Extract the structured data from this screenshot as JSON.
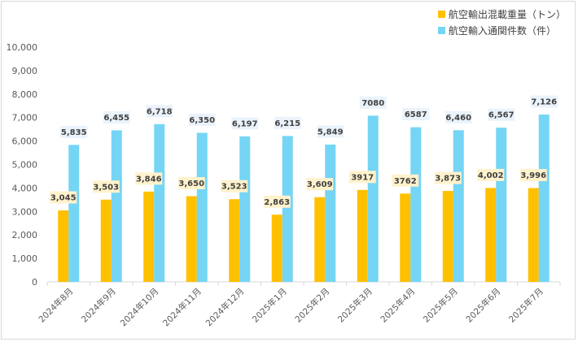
{
  "chart_data": {
    "type": "bar",
    "categories": [
      "2024年8月",
      "2024年9月",
      "2024年10月",
      "2024年11月",
      "2024年12月",
      "2025年1月",
      "2025年2月",
      "2025年3月",
      "2025年4月",
      "2025年5月",
      "2025年6月",
      "2025年7月"
    ],
    "series": [
      {
        "name": "航空輸出混載重量（トン）",
        "color": "#ffc000",
        "label_bg": "#fff2cc",
        "values": [
          3045,
          3503,
          3846,
          3650,
          3523,
          2863,
          3609,
          3917,
          3762,
          3873,
          4002,
          3996
        ],
        "labels": [
          "3,045",
          "3,503",
          "3,846",
          "3,650",
          "3,523",
          "2,863",
          "3,609",
          "3917",
          "3762",
          "3,873",
          "4,002",
          "3,996"
        ]
      },
      {
        "name": "航空輸入通関件数（件）",
        "color": "#75d5f5",
        "label_bg": "#eaf3fb",
        "values": [
          5835,
          6455,
          6718,
          6350,
          6197,
          6215,
          5849,
          7080,
          6587,
          6460,
          6567,
          7126
        ],
        "labels": [
          "5,835",
          "6,455",
          "6,718",
          "6,350",
          "6,197",
          "6,215",
          "5,849",
          "7080",
          "6587",
          "6,460",
          "6,567",
          "7,126"
        ]
      }
    ],
    "ylim": [
      0,
      10000
    ],
    "yticks": [
      "0",
      "1,000",
      "2,000",
      "3,000",
      "4,000",
      "5,000",
      "6,000",
      "7,000",
      "8,000",
      "9,000",
      "10,000"
    ],
    "ytick_values": [
      0,
      1000,
      2000,
      3000,
      4000,
      5000,
      6000,
      7000,
      8000,
      9000,
      10000
    ],
    "legend_position": "top-right",
    "grid": false
  }
}
